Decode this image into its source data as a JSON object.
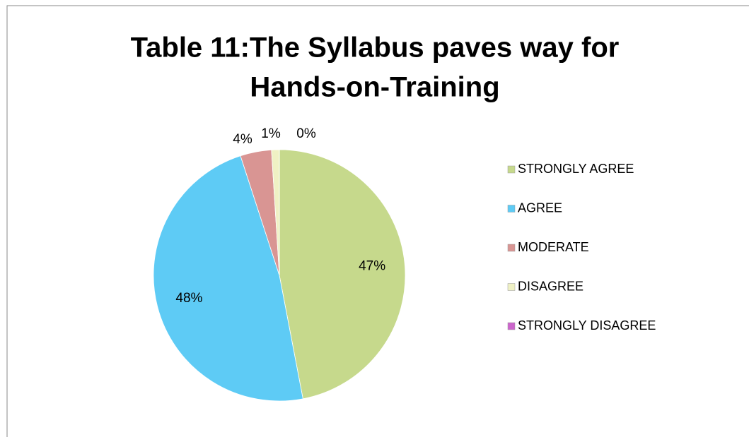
{
  "chart_data": {
    "type": "pie",
    "title": [
      "Table 11:The Syllabus paves way for",
      "Hands-on-Training"
    ],
    "categories": [
      "STRONGLY AGREE",
      "AGREE",
      "MODERATE",
      "DISAGREE",
      "STRONGLY DISAGREE"
    ],
    "values": [
      47,
      48,
      4,
      1,
      0
    ],
    "value_labels": [
      "47%",
      "48%",
      "4%",
      "1%",
      "0%"
    ],
    "colors": [
      "#c6d98c",
      "#5ecbf5",
      "#d99593",
      "#eff1c4",
      "#cc66cc"
    ],
    "legend": "right"
  }
}
